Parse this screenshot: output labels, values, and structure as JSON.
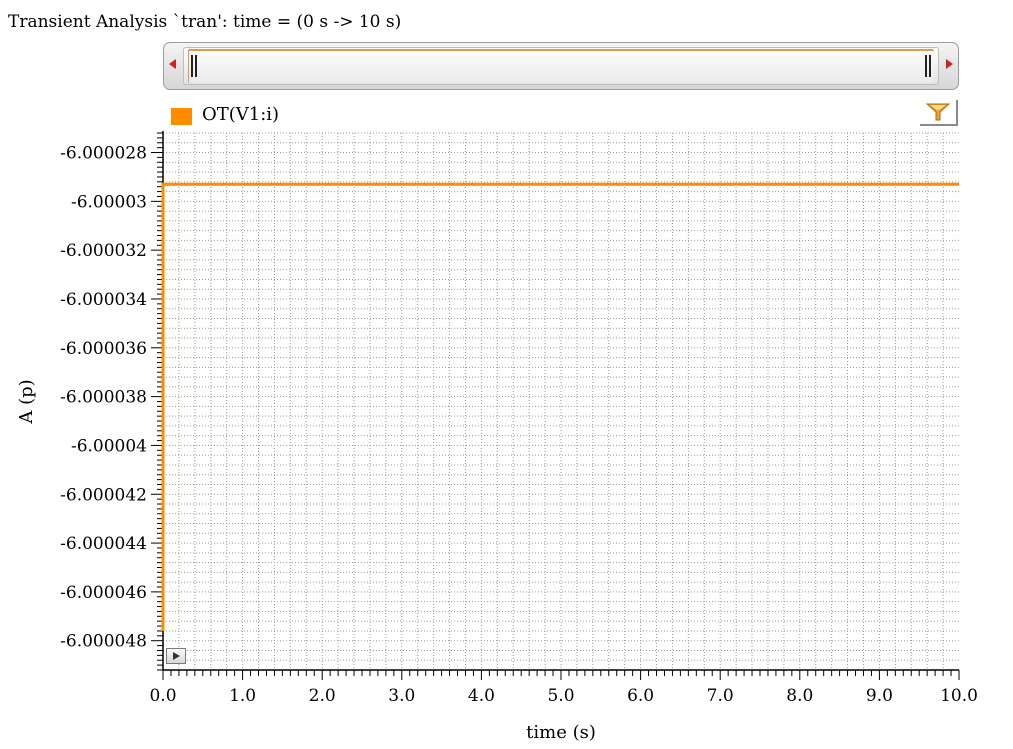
{
  "header": {
    "title": "Transient Analysis `tran': time = (0 s -> 10 s)"
  },
  "colors": {
    "series": "#ff8c00",
    "grid": "#9a9a9a"
  },
  "chart_data": {
    "type": "line",
    "title": "",
    "xlabel": "time (s)",
    "ylabel": "A (p)",
    "xlim": [
      0,
      10
    ],
    "ylim": [
      -6.0000492,
      -6.0000272
    ],
    "xticks": [
      "0.0",
      "1.0",
      "2.0",
      "3.0",
      "4.0",
      "5.0",
      "6.0",
      "7.0",
      "8.0",
      "9.0",
      "10.0"
    ],
    "yticks": [
      "-6.000028",
      "-6.00003",
      "-6.000032",
      "-6.000034",
      "-6.000036",
      "-6.000038",
      "-6.00004",
      "-6.000042",
      "-6.000044",
      "-6.000046",
      "-6.000048"
    ],
    "grid": true,
    "legend_placement": "top-left",
    "series": [
      {
        "name": "OT(V1:i)",
        "x": [
          0,
          0.0005,
          10
        ],
        "y": [
          -6.0000476,
          -6.0000293,
          -6.0000293
        ]
      }
    ]
  }
}
